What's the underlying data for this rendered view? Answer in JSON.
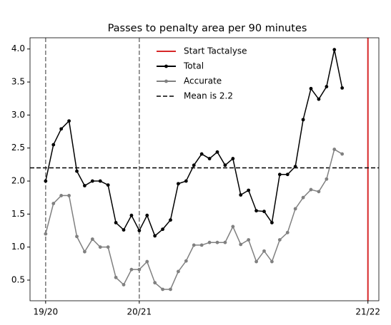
{
  "chart_data": {
    "type": "line",
    "title": "Passes to penalty area per 90 minutes",
    "x": [
      0,
      1,
      2,
      3,
      4,
      5,
      6,
      7,
      8,
      9,
      10,
      11,
      12,
      13,
      14,
      15,
      16,
      17,
      18,
      19,
      20,
      21,
      22,
      23,
      24,
      25,
      26,
      27,
      28,
      29,
      30,
      31,
      32,
      33,
      34,
      35,
      36,
      37,
      38
    ],
    "series": [
      {
        "name": "Total",
        "color": "#000000",
        "values": [
          2.0,
          2.55,
          2.79,
          2.91,
          2.15,
          1.93,
          2.0,
          2.0,
          1.94,
          1.37,
          1.26,
          1.48,
          1.25,
          1.48,
          1.17,
          1.27,
          1.41,
          1.96,
          2.0,
          2.24,
          2.41,
          2.34,
          2.44,
          2.24,
          2.34,
          1.79,
          1.86,
          1.55,
          1.54,
          1.37,
          2.1,
          2.1,
          2.22,
          2.93,
          3.4,
          3.24,
          3.43,
          3.99,
          3.41
        ]
      },
      {
        "name": "Accurate",
        "color": "#808080",
        "values": [
          1.2,
          1.66,
          1.78,
          1.78,
          1.16,
          0.93,
          1.12,
          1.0,
          1.0,
          0.54,
          0.43,
          0.66,
          0.66,
          0.78,
          0.46,
          0.36,
          0.36,
          0.63,
          0.79,
          1.03,
          1.03,
          1.07,
          1.07,
          1.07,
          1.31,
          1.04,
          1.11,
          0.78,
          0.94,
          0.78,
          1.11,
          1.22,
          1.58,
          1.75,
          1.87,
          1.84,
          2.03,
          2.48,
          2.41
        ]
      }
    ],
    "reference_lines": [
      {
        "name": "Start Tactalyse",
        "axis": "x",
        "value": 41.3,
        "color": "#d62728",
        "style": "solid"
      },
      {
        "name": "Mean is 2.2",
        "axis": "y",
        "value": 2.2,
        "color": "#000000",
        "style": "dashed"
      }
    ],
    "season_lines": {
      "values": [
        0,
        12
      ],
      "color": "#777777"
    },
    "xlim": [
      -2.0,
      42.7
    ],
    "ylim": [
      0.187,
      4.17
    ],
    "xticks": [
      {
        "value": 0,
        "label": "19/20"
      },
      {
        "value": 12,
        "label": "20/21"
      },
      {
        "value": 41.3,
        "label": "21/22"
      }
    ],
    "yticks": [
      0.5,
      1.0,
      1.5,
      2.0,
      2.5,
      3.0,
      3.5,
      4.0
    ],
    "ytick_labels": [
      "0.5",
      "1.0",
      "1.5",
      "2.0",
      "2.5",
      "3.0",
      "3.5",
      "4.0"
    ],
    "legend": [
      "Start Tactalyse",
      "Total",
      "Accurate",
      "Mean is 2.2"
    ]
  }
}
